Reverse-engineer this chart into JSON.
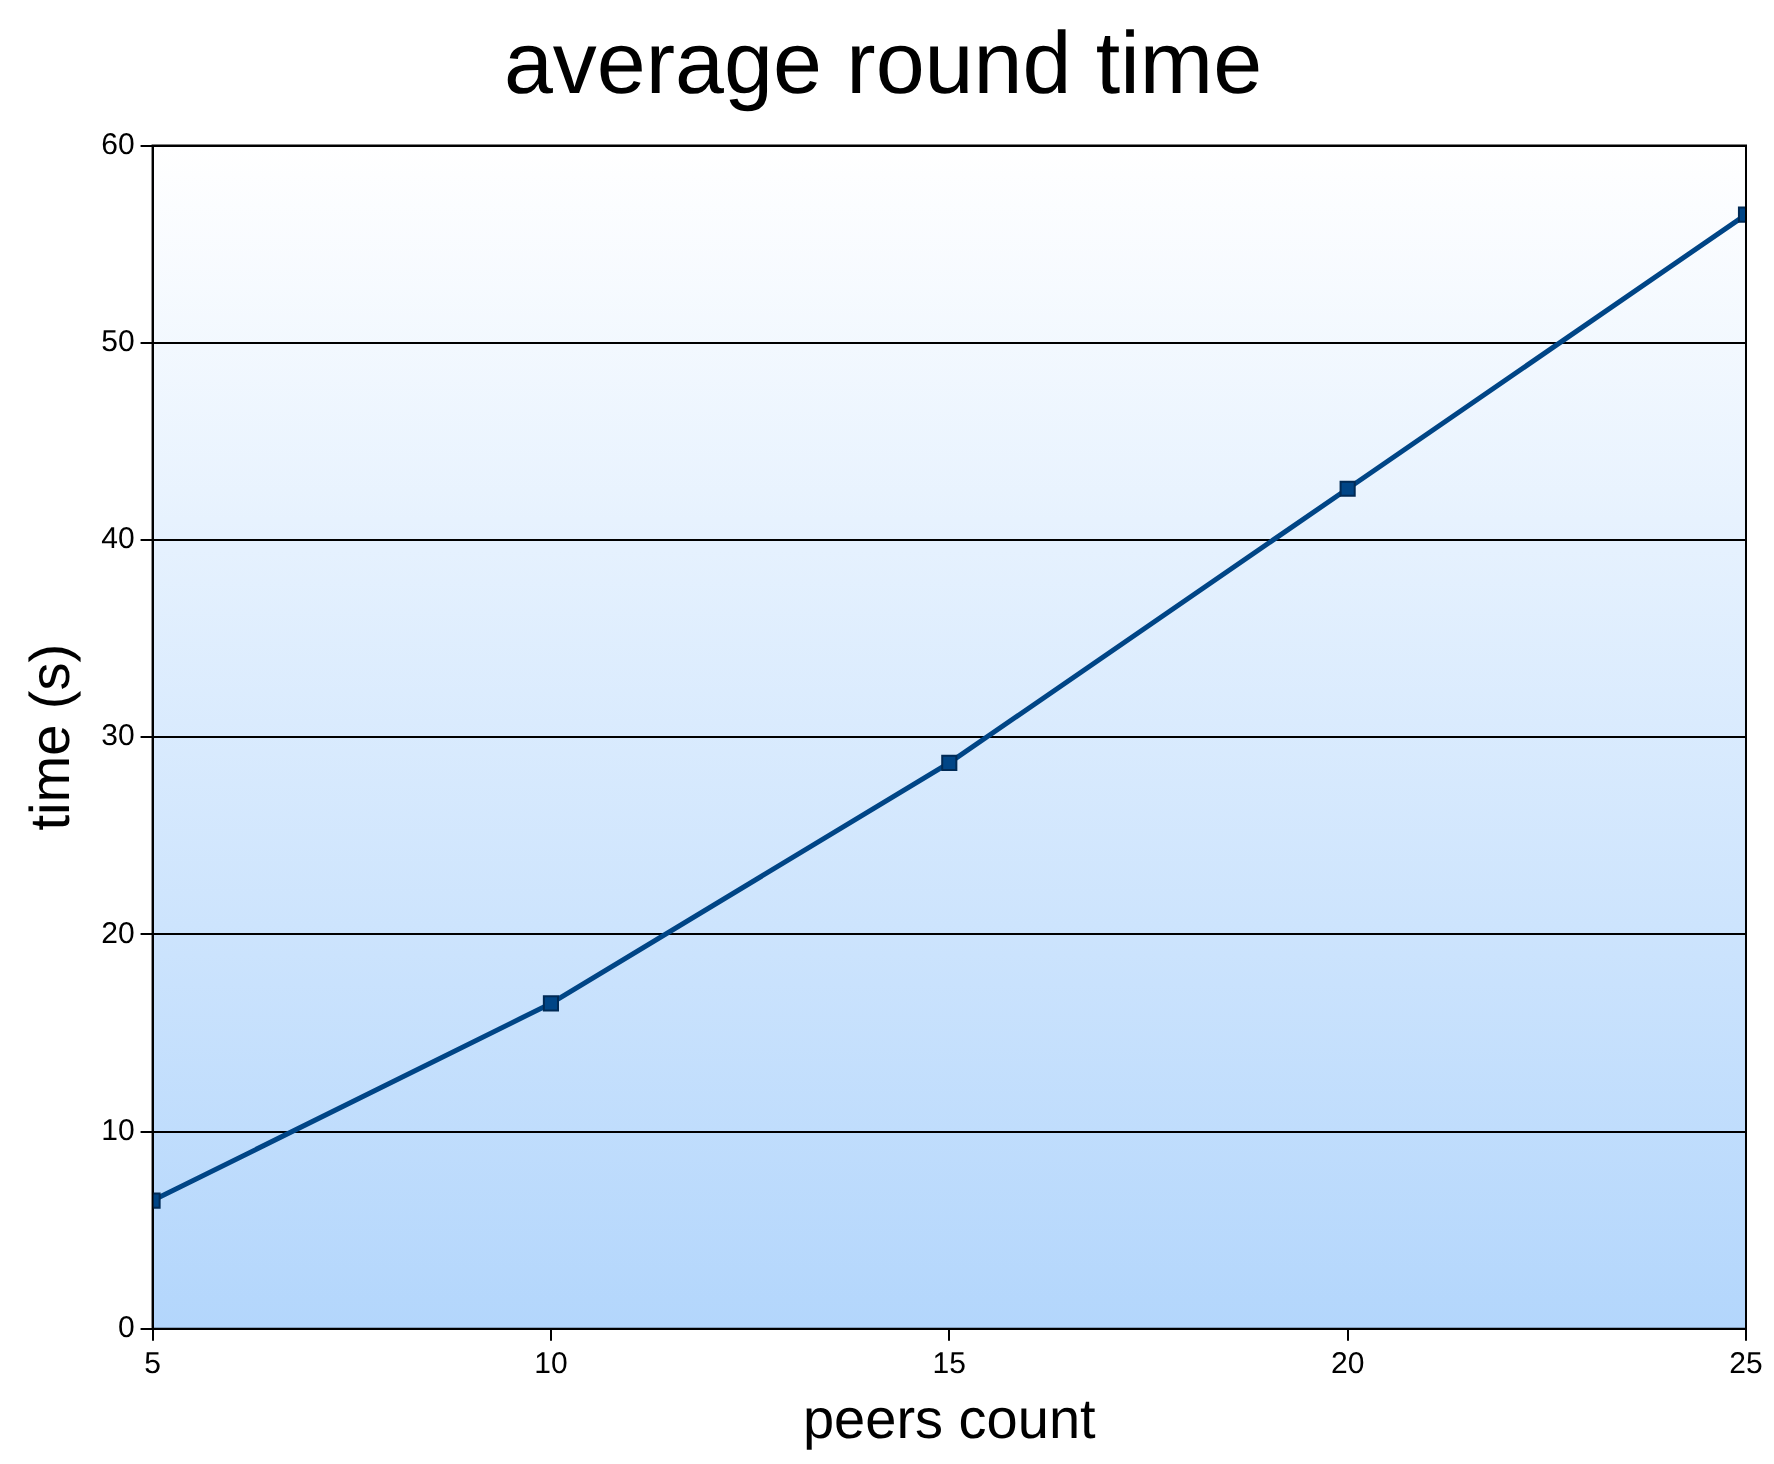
{
  "chart_data": {
    "type": "line",
    "title": "average round time",
    "xlabel": "peers count",
    "ylabel": "time (s)",
    "x": [
      5,
      10,
      15,
      20,
      25
    ],
    "series": [
      {
        "color": "#004586",
        "values": [
          6.5,
          16.5,
          28.7,
          42.6,
          56.5
        ]
      }
    ],
    "xlim": [
      5,
      25
    ],
    "xticks": [
      5,
      10,
      15,
      20,
      25
    ],
    "ylim": [
      0,
      60
    ],
    "yticks": [
      0,
      10,
      20,
      30,
      40,
      50,
      60
    ],
    "grid": "y",
    "legend": false,
    "marker": "square",
    "line_style": "solid"
  }
}
